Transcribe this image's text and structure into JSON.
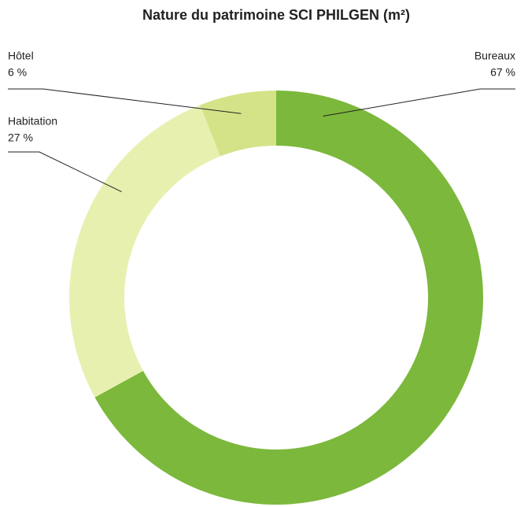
{
  "chart_data": {
    "type": "donut",
    "title": "Nature du patrimoine SCI PHILGEN (m²)",
    "categories": [
      "Bureaux",
      "Habitation",
      "Hôtel"
    ],
    "values": [
      67,
      27,
      6
    ],
    "value_labels": [
      "67 %",
      "27 %",
      "6 %"
    ],
    "colors": [
      "#7cb83c",
      "#e8f0b0",
      "#d4e388"
    ]
  }
}
